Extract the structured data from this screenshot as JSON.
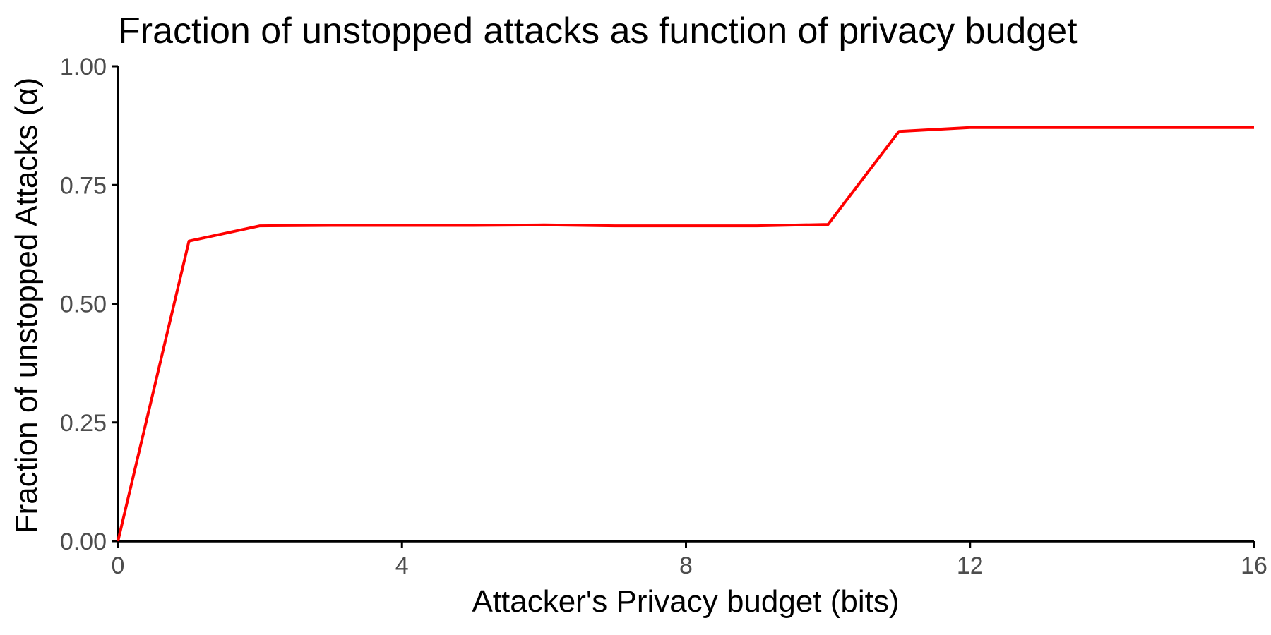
{
  "chart_data": {
    "type": "line",
    "title": "Fraction of unstopped attacks as function of privacy budget",
    "xlabel": "Attacker's Privacy budget (bits)",
    "ylabel": "Fraction of unstopped Attacks (α)",
    "xlim": [
      0,
      16
    ],
    "ylim": [
      0,
      1
    ],
    "x_ticks": [
      0,
      4,
      8,
      12,
      16
    ],
    "x_tick_labels": [
      "0",
      "4",
      "8",
      "12",
      "16"
    ],
    "y_ticks": [
      0,
      0.25,
      0.5,
      0.75,
      1.0
    ],
    "y_tick_labels": [
      "0.00",
      "0.25",
      "0.50",
      "0.75",
      "1.00"
    ],
    "grid": false,
    "legend": "none",
    "series": [
      {
        "color": "#ff0000",
        "x": [
          0,
          1,
          2,
          3,
          4,
          5,
          6,
          7,
          8,
          9,
          10,
          11,
          12,
          13,
          14,
          15,
          16
        ],
        "y": [
          0.0,
          0.632,
          0.664,
          0.665,
          0.665,
          0.665,
          0.666,
          0.664,
          0.664,
          0.664,
          0.667,
          0.863,
          0.871,
          0.871,
          0.871,
          0.871,
          0.871
        ]
      }
    ]
  }
}
